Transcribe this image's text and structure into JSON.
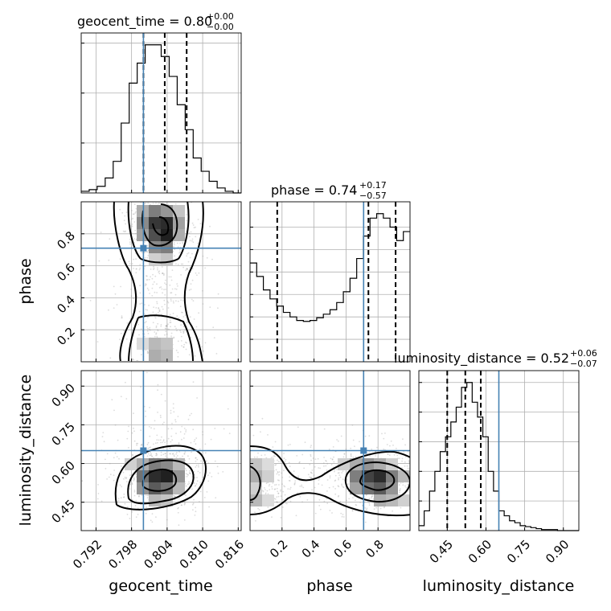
{
  "colors": {
    "truth": "#4682b4",
    "line": "#000000",
    "grid": "#b0b0b0"
  },
  "chart_data": {
    "type": "corner",
    "parameters": [
      "geocent_time",
      "phase",
      "luminosity_distance"
    ],
    "truths": {
      "geocent_time": 0.8,
      "phase": 0.71,
      "luminosity_distance": 0.65
    },
    "titles": [
      {
        "param": "geocent_time",
        "text": "geocent_time = 0.80",
        "sup": "+0.00",
        "sub": "−0.00"
      },
      {
        "param": "phase",
        "text": "phase = 0.74",
        "sup": "+0.17",
        "sub": "−0.57"
      },
      {
        "param": "luminosity_distance",
        "text": "luminosity_distance = 0.52",
        "sup": "+0.06",
        "sub": "−0.07"
      }
    ],
    "ranges": {
      "geocent_time": [
        0.7895,
        0.8165
      ],
      "phase": [
        0.0,
        1.0
      ],
      "luminosity_distance": [
        0.34,
        0.96
      ]
    },
    "ticks": {
      "geocent_time": [
        0.792,
        0.798,
        0.804,
        0.81,
        0.816
      ],
      "phase": [
        0.2,
        0.4,
        0.6,
        0.8
      ],
      "luminosity_distance": [
        0.45,
        0.6,
        0.75,
        0.9
      ]
    },
    "tick_labels": {
      "geocent_time": [
        "0.792",
        "0.798",
        "0.804",
        "0.810",
        "0.816"
      ],
      "phase": [
        "0.2",
        "0.4",
        "0.6",
        "0.8"
      ],
      "luminosity_distance": [
        "0.45",
        "0.60",
        "0.75",
        "0.90"
      ]
    },
    "axis_labels": {
      "geocent_time": "geocent_time",
      "phase": "phase",
      "luminosity_distance": "luminosity_distance"
    },
    "quantiles": {
      "geocent_time": [
        0.8,
        0.8036,
        0.8073
      ],
      "phase": [
        0.17,
        0.74,
        0.91
      ],
      "luminosity_distance": [
        0.45,
        0.52,
        0.58
      ]
    },
    "histograms": {
      "geocent_time": [
        1,
        2,
        4,
        9,
        19,
        42,
        66,
        78,
        89,
        89,
        82,
        70,
        53,
        38,
        21,
        13,
        7,
        3,
        1,
        0
      ],
      "phase": [
        110,
        95,
        80,
        70,
        62,
        55,
        50,
        46,
        45,
        46,
        49,
        53,
        58,
        66,
        78,
        93,
        115,
        140,
        160,
        165,
        160,
        150,
        135,
        145
      ],
      "luminosity_distance": [
        5,
        20,
        40,
        60,
        80,
        95,
        110,
        125,
        145,
        150,
        130,
        115,
        95,
        60,
        40,
        20,
        15,
        10,
        8,
        5,
        4,
        3,
        2,
        1,
        1,
        1,
        0,
        0,
        0,
        0
      ]
    },
    "histogram_y_ticks": {
      "geocent_time": [
        30,
        60,
        90
      ],
      "phase": [
        25,
        50,
        75,
        100,
        125,
        150
      ],
      "luminosity_distance": [
        30,
        60,
        90,
        120,
        150
      ]
    },
    "grid": true
  }
}
